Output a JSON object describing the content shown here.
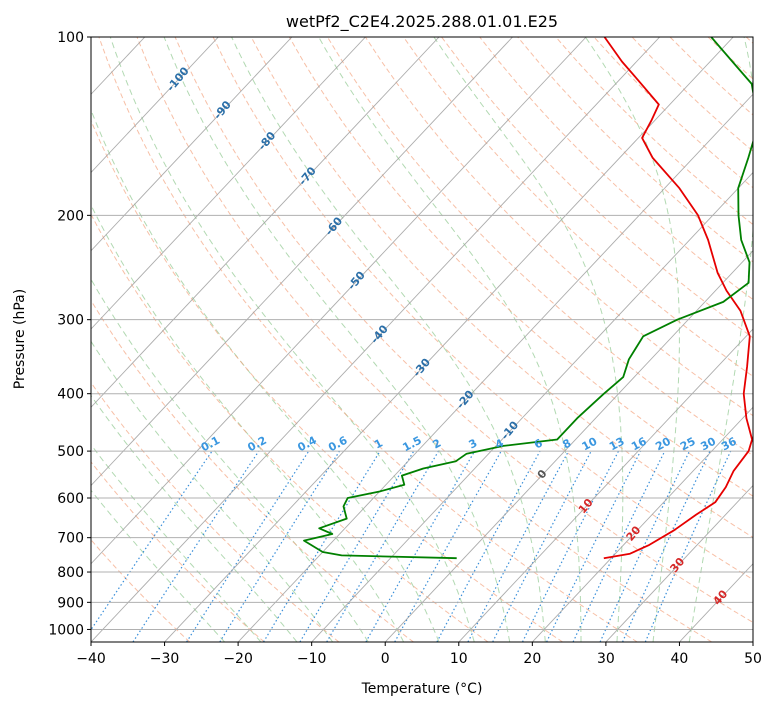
{
  "chart_data": {
    "type": "line",
    "title": "wetPf2_C2E4.2025.288.01.01.E25",
    "xlabel": "Temperature (°C)",
    "ylabel": "Pressure (hPa)",
    "xlim": [
      -40,
      50
    ],
    "ylim": [
      1050,
      100
    ],
    "yscale": "log",
    "x_ticks": [
      "−40",
      "−30",
      "−20",
      "−10",
      "0",
      "10",
      "20",
      "30",
      "40",
      "50"
    ],
    "y_ticks": [
      "1000",
      "900",
      "800",
      "700",
      "600",
      "500",
      "400",
      "300",
      "200",
      "100"
    ],
    "grid": true,
    "colors": {
      "temperature": "#e60000",
      "dewpoint": "#008000",
      "dry_adiabat": "#f4a582",
      "moist_adiabat": "#7fbf7f",
      "mixing_ratio": "#3a8fd9",
      "isotherm": "#9e9e9e"
    },
    "isotherm_labels": [
      "-100",
      "-90",
      "-80",
      "-70",
      "-60",
      "-50",
      "-40",
      "-30",
      "-20",
      "-10",
      "0",
      "10",
      "20",
      "30",
      "40"
    ],
    "mixing_ratio_labels": [
      "0.1",
      "0.2",
      "0.4",
      "0.6",
      "1",
      "1.5",
      "2",
      "3",
      "4",
      "6",
      "8",
      "10",
      "13",
      "16",
      "20",
      "25",
      "30",
      "36"
    ],
    "series": [
      {
        "name": "",
        "role": "temperature",
        "points": [
          {
            "p": 758,
            "t": 19.0
          },
          {
            "p": 745,
            "t": 22.0
          },
          {
            "p": 720,
            "t": 23.5
          },
          {
            "p": 680,
            "t": 25.0
          },
          {
            "p": 640,
            "t": 26.0
          },
          {
            "p": 610,
            "t": 27.0
          },
          {
            "p": 575,
            "t": 26.5
          },
          {
            "p": 540,
            "t": 25.5
          },
          {
            "p": 500,
            "t": 25.0
          },
          {
            "p": 478,
            "t": 24.0
          },
          {
            "p": 440,
            "t": 20.5
          },
          {
            "p": 400,
            "t": 17.0
          },
          {
            "p": 360,
            "t": 14.0
          },
          {
            "p": 320,
            "t": 10.5
          },
          {
            "p": 290,
            "t": 6.0
          },
          {
            "p": 268,
            "t": 1.5
          },
          {
            "p": 250,
            "t": -2.0
          },
          {
            "p": 220,
            "t": -7.5
          },
          {
            "p": 200,
            "t": -12.0
          },
          {
            "p": 180,
            "t": -18.0
          },
          {
            "p": 160,
            "t": -25.5
          },
          {
            "p": 148,
            "t": -29.5
          },
          {
            "p": 138,
            "t": -30.5
          },
          {
            "p": 130,
            "t": -31.5
          },
          {
            "p": 120,
            "t": -36.5
          },
          {
            "p": 110,
            "t": -42.0
          },
          {
            "p": 100,
            "t": -47.5
          }
        ]
      },
      {
        "name": "",
        "role": "dewpoint",
        "points": [
          {
            "p": 758,
            "t": -1.0
          },
          {
            "p": 750,
            "t": -17.0
          },
          {
            "p": 740,
            "t": -20.0
          },
          {
            "p": 720,
            "t": -22.5
          },
          {
            "p": 708,
            "t": -24.0
          },
          {
            "p": 690,
            "t": -21.0
          },
          {
            "p": 675,
            "t": -23.5
          },
          {
            "p": 650,
            "t": -21.0
          },
          {
            "p": 620,
            "t": -23.0
          },
          {
            "p": 600,
            "t": -23.5
          },
          {
            "p": 585,
            "t": -20.0
          },
          {
            "p": 570,
            "t": -17.5
          },
          {
            "p": 550,
            "t": -19.0
          },
          {
            "p": 535,
            "t": -17.0
          },
          {
            "p": 520,
            "t": -13.5
          },
          {
            "p": 505,
            "t": -13.0
          },
          {
            "p": 490,
            "t": -9.0
          },
          {
            "p": 478,
            "t": -2.5
          },
          {
            "p": 440,
            "t": -2.5
          },
          {
            "p": 400,
            "t": -2.0
          },
          {
            "p": 375,
            "t": -1.5
          },
          {
            "p": 350,
            "t": -3.0
          },
          {
            "p": 320,
            "t": -4.0
          },
          {
            "p": 300,
            "t": -1.5
          },
          {
            "p": 280,
            "t": 2.5
          },
          {
            "p": 260,
            "t": 3.5
          },
          {
            "p": 240,
            "t": 1.0
          },
          {
            "p": 220,
            "t": -3.0
          },
          {
            "p": 200,
            "t": -6.5
          },
          {
            "p": 180,
            "t": -10.0
          },
          {
            "p": 160,
            "t": -12.5
          },
          {
            "p": 140,
            "t": -15.5
          },
          {
            "p": 120,
            "t": -21.5
          },
          {
            "p": 110,
            "t": -27.0
          },
          {
            "p": 100,
            "t": -33.0
          }
        ]
      }
    ]
  }
}
